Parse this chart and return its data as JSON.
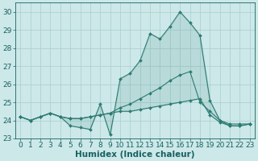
{
  "xlabel": "Humidex (Indice chaleur)",
  "x": [
    0,
    1,
    2,
    3,
    4,
    5,
    6,
    7,
    8,
    9,
    10,
    11,
    12,
    13,
    14,
    15,
    16,
    17,
    18,
    19,
    20,
    21,
    22,
    23
  ],
  "line_top": [
    24.2,
    24.0,
    24.2,
    24.4,
    24.2,
    23.7,
    23.6,
    23.5,
    24.9,
    23.2,
    26.3,
    26.6,
    27.3,
    28.8,
    28.5,
    29.2,
    30.0,
    29.4,
    28.7,
    25.1,
    24.0,
    23.7,
    23.7,
    23.8
  ],
  "line_mid": [
    24.2,
    24.0,
    24.2,
    24.4,
    24.2,
    24.1,
    24.1,
    24.2,
    24.3,
    24.4,
    24.7,
    24.9,
    25.2,
    25.5,
    25.8,
    26.2,
    26.5,
    26.7,
    25.0,
    24.5,
    24.0,
    23.8,
    23.8,
    23.8
  ],
  "line_bot": [
    24.2,
    24.0,
    24.2,
    24.4,
    24.2,
    24.1,
    24.1,
    24.2,
    24.3,
    24.4,
    24.5,
    24.5,
    24.6,
    24.7,
    24.8,
    24.9,
    25.0,
    25.1,
    25.2,
    24.3,
    23.9,
    23.7,
    23.7,
    23.8
  ],
  "ylim": [
    23.0,
    30.5
  ],
  "xlim": [
    -0.5,
    23.5
  ],
  "yticks": [
    23,
    24,
    25,
    26,
    27,
    28,
    29,
    30
  ],
  "xticks": [
    0,
    1,
    2,
    3,
    4,
    5,
    6,
    7,
    8,
    9,
    10,
    11,
    12,
    13,
    14,
    15,
    16,
    17,
    18,
    19,
    20,
    21,
    22,
    23
  ],
  "line_color": "#2d7b72",
  "bg_color": "#cce8e8",
  "grid_color": "#aacece",
  "tick_color": "#1a6060",
  "label_color": "#1a6060",
  "font_size": 6.5,
  "label_font_size": 7.5
}
